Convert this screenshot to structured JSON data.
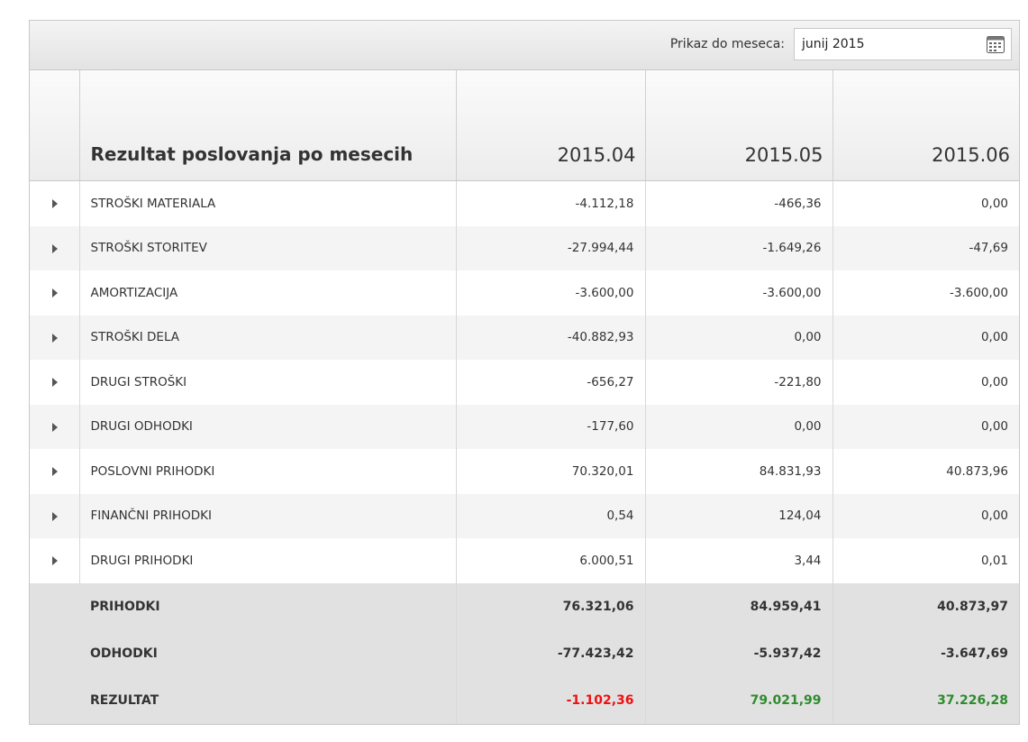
{
  "toolbar": {
    "label": "Prikaz do meseca:",
    "date": "junij 2015"
  },
  "table": {
    "title": "Rezultat poslovanja po mesecih",
    "columns": [
      "2015.04",
      "2015.05",
      "2015.06"
    ],
    "rows": [
      {
        "label": "STROŠKI MATERIALA",
        "values": [
          "-4.112,18",
          "-466,36",
          "0,00"
        ]
      },
      {
        "label": "STROŠKI STORITEV",
        "values": [
          "-27.994,44",
          "-1.649,26",
          "-47,69"
        ]
      },
      {
        "label": "AMORTIZACIJA",
        "values": [
          "-3.600,00",
          "-3.600,00",
          "-3.600,00"
        ]
      },
      {
        "label": "STROŠKI DELA",
        "values": [
          "-40.882,93",
          "0,00",
          "0,00"
        ]
      },
      {
        "label": "DRUGI STROŠKI",
        "values": [
          "-656,27",
          "-221,80",
          "0,00"
        ]
      },
      {
        "label": "DRUGI ODHODKI",
        "values": [
          "-177,60",
          "0,00",
          "0,00"
        ]
      },
      {
        "label": "POSLOVNI PRIHODKI",
        "values": [
          "70.320,01",
          "84.831,93",
          "40.873,96"
        ]
      },
      {
        "label": "FINANČNI PRIHODKI",
        "values": [
          "0,54",
          "124,04",
          "0,00"
        ]
      },
      {
        "label": "DRUGI PRIHODKI",
        "values": [
          "6.000,51",
          "3,44",
          "0,01"
        ]
      }
    ],
    "summary": [
      {
        "label": "PRIHODKI",
        "values": [
          "76.321,06",
          "84.959,41",
          "40.873,97"
        ]
      },
      {
        "label": "ODHODKI",
        "values": [
          "-77.423,42",
          "-5.937,42",
          "-3.647,69"
        ]
      },
      {
        "label": "REZULTAT",
        "values": [
          "-1.102,36",
          "79.021,99",
          "37.226,28"
        ],
        "value_colors": [
          "#ee1111",
          "#2e8b2e",
          "#2e8b2e"
        ]
      }
    ]
  }
}
